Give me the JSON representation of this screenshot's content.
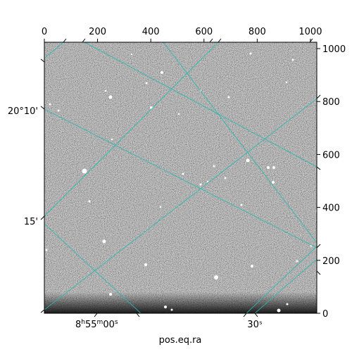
{
  "chart_data": {
    "type": "image",
    "xlabel": "pos.eq.ra",
    "ylabel": "",
    "pixel_axes": {
      "x_ticks": [
        0,
        200,
        400,
        600,
        800,
        1000
      ],
      "y_ticks": [
        0,
        200,
        400,
        600,
        800,
        1000
      ],
      "xlim": [
        0,
        1024
      ],
      "ylim": [
        0,
        1024
      ]
    },
    "world_axes": {
      "ra_ticks": [
        {
          "label_h": "8",
          "label_m": "55",
          "label_s": "00"
        },
        {
          "label": "30ˢ"
        }
      ],
      "dec_ticks": [
        "20°10'",
        "15'"
      ]
    },
    "grid_color": "#2ab7b0",
    "grid": true
  }
}
